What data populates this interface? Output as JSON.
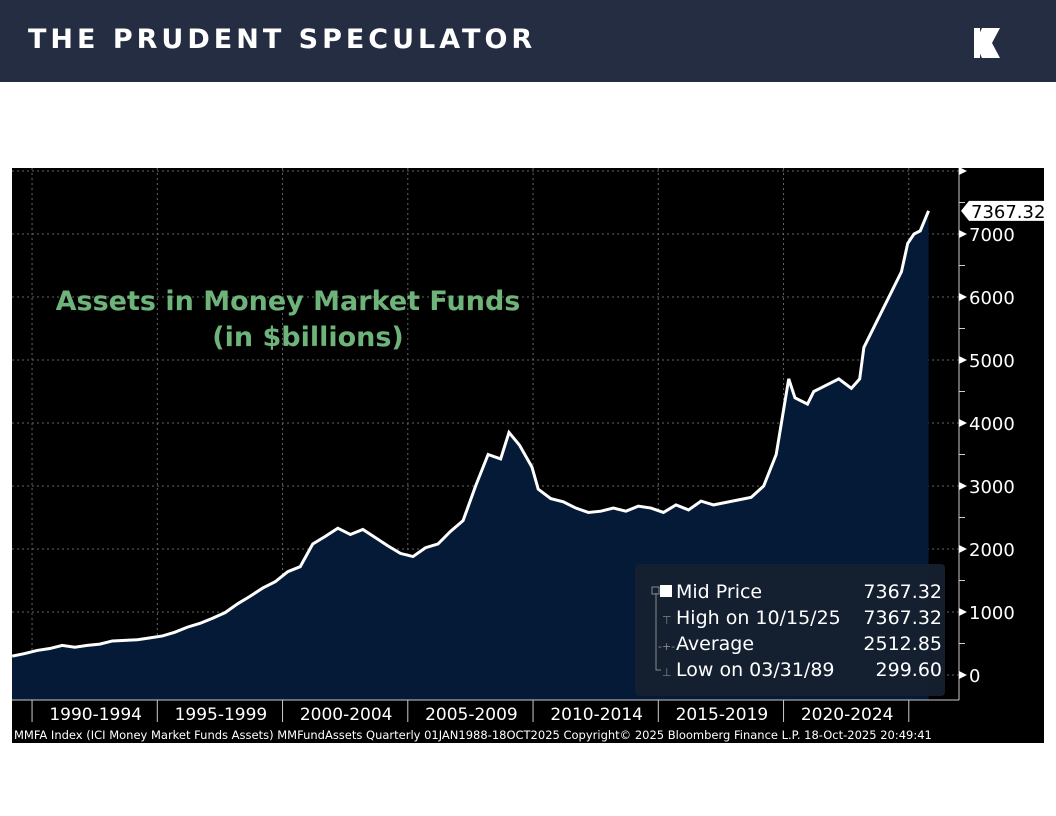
{
  "header": {
    "brand": "THE PRUDENT SPECULATOR",
    "logo": "K-logo"
  },
  "chart_data": {
    "type": "area",
    "title": "Assets in Money Market Funds",
    "subtitle": "(in $billions)",
    "ylim": [
      0,
      8000
    ],
    "yticks": [
      0,
      1000,
      2000,
      3000,
      4000,
      5000,
      6000,
      7000
    ],
    "xticks": [
      "1990-1994",
      "1995-1999",
      "2000-2004",
      "2005-2009",
      "2010-2014",
      "2015-2019",
      "2020-2024"
    ],
    "grid": true,
    "colors": {
      "line": "#ffffff",
      "fill": "#051a36",
      "title": "#6db37a",
      "background": "#000000"
    },
    "last_value_label": "7367.32",
    "series": [
      {
        "name": "Mid Price",
        "points": [
          [
            "1989-03",
            300
          ],
          [
            "1989-09",
            340
          ],
          [
            "1990-03",
            390
          ],
          [
            "1990-09",
            420
          ],
          [
            "1991-03",
            470
          ],
          [
            "1991-09",
            440
          ],
          [
            "1992-03",
            470
          ],
          [
            "1992-09",
            490
          ],
          [
            "1993-03",
            540
          ],
          [
            "1993-09",
            550
          ],
          [
            "1994-03",
            560
          ],
          [
            "1994-09",
            590
          ],
          [
            "1995-03",
            620
          ],
          [
            "1995-09",
            680
          ],
          [
            "1996-03",
            760
          ],
          [
            "1996-09",
            820
          ],
          [
            "1997-03",
            900
          ],
          [
            "1997-09",
            990
          ],
          [
            "1998-03",
            1130
          ],
          [
            "1998-09",
            1250
          ],
          [
            "1999-03",
            1380
          ],
          [
            "1999-09",
            1480
          ],
          [
            "2000-03",
            1640
          ],
          [
            "2000-09",
            1720
          ],
          [
            "2001-03",
            2080
          ],
          [
            "2001-09",
            2200
          ],
          [
            "2002-03",
            2330
          ],
          [
            "2002-09",
            2230
          ],
          [
            "2003-03",
            2310
          ],
          [
            "2003-09",
            2180
          ],
          [
            "2004-03",
            2050
          ],
          [
            "2004-09",
            1930
          ],
          [
            "2005-03",
            1880
          ],
          [
            "2005-09",
            2020
          ],
          [
            "2006-03",
            2080
          ],
          [
            "2006-09",
            2280
          ],
          [
            "2007-03",
            2450
          ],
          [
            "2007-09",
            3000
          ],
          [
            "2008-03",
            3500
          ],
          [
            "2008-09",
            3430
          ],
          [
            "2009-01",
            3850
          ],
          [
            "2009-06",
            3650
          ],
          [
            "2009-12",
            3300
          ],
          [
            "2010-03",
            2950
          ],
          [
            "2010-09",
            2800
          ],
          [
            "2011-03",
            2750
          ],
          [
            "2011-09",
            2650
          ],
          [
            "2012-03",
            2580
          ],
          [
            "2012-09",
            2600
          ],
          [
            "2013-03",
            2650
          ],
          [
            "2013-09",
            2600
          ],
          [
            "2014-03",
            2680
          ],
          [
            "2014-09",
            2650
          ],
          [
            "2015-03",
            2580
          ],
          [
            "2015-09",
            2700
          ],
          [
            "2016-03",
            2620
          ],
          [
            "2016-09",
            2760
          ],
          [
            "2017-03",
            2700
          ],
          [
            "2017-09",
            2740
          ],
          [
            "2018-03",
            2780
          ],
          [
            "2018-09",
            2820
          ],
          [
            "2019-03",
            3000
          ],
          [
            "2019-09",
            3500
          ],
          [
            "2020-03",
            4700
          ],
          [
            "2020-06",
            4400
          ],
          [
            "2020-12",
            4300
          ],
          [
            "2021-03",
            4500
          ],
          [
            "2021-09",
            4600
          ],
          [
            "2022-03",
            4700
          ],
          [
            "2022-09",
            4550
          ],
          [
            "2023-01",
            4700
          ],
          [
            "2023-03",
            5200
          ],
          [
            "2023-09",
            5600
          ],
          [
            "2024-03",
            6000
          ],
          [
            "2024-09",
            6400
          ],
          [
            "2024-12",
            6850
          ],
          [
            "2025-03",
            7000
          ],
          [
            "2025-06",
            7050
          ],
          [
            "2025-10",
            7367.32
          ]
        ]
      }
    ],
    "legend": {
      "placement": "bottom-right",
      "rows": [
        {
          "label": "Mid Price",
          "value": "7367.32"
        },
        {
          "label": "High on 10/15/25",
          "value": "7367.32"
        },
        {
          "label": "Average",
          "value": "2512.85"
        },
        {
          "label": "Low on 03/31/89",
          "value": "299.60"
        }
      ]
    },
    "footer": "MMFA Index (ICI Money Market Funds Assets) MMFundAssets Quarterly 01JAN1988-18OCT2025 Copyright© 2025 Bloomberg Finance L.P. 18-Oct-2025 20:49:41"
  }
}
